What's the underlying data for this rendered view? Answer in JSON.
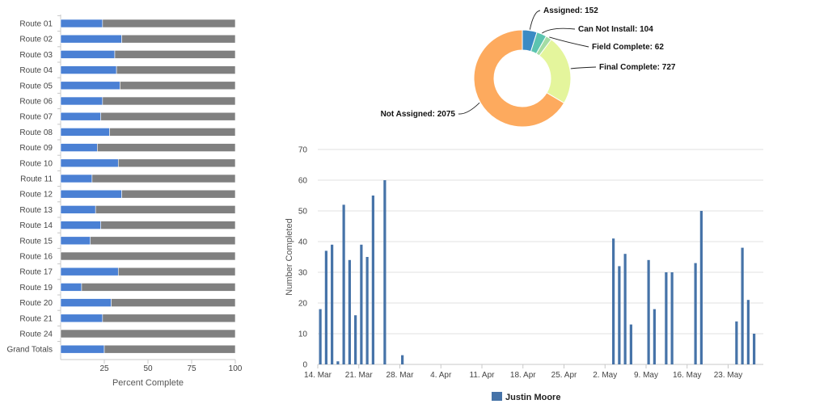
{
  "chart_data": [
    {
      "type": "bar",
      "orientation": "horizontal",
      "stacked": true,
      "categories": [
        "Route 01",
        "Route 02",
        "Route 03",
        "Route 04",
        "Route 05",
        "Route 06",
        "Route 07",
        "Route 08",
        "Route 09",
        "Route 10",
        "Route 11",
        "Route 12",
        "Route 13",
        "Route 14",
        "Route 15",
        "Route 16",
        "Route 17",
        "Route 19",
        "Route 20",
        "Route 21",
        "Route 24",
        "Grand Totals"
      ],
      "series": [
        {
          "values": [
            24,
            35,
            31,
            32,
            34,
            24,
            23,
            28,
            21,
            33,
            18,
            35,
            20,
            23,
            17,
            0,
            33,
            12,
            29,
            24,
            0,
            25
          ],
          "color": "#4a80d4"
        },
        {
          "values": [
            76,
            65,
            69,
            68,
            66,
            76,
            77,
            72,
            79,
            67,
            82,
            65,
            80,
            77,
            83,
            100,
            67,
            88,
            71,
            76,
            100,
            75
          ],
          "color": "#808080"
        }
      ],
      "xlabel": "Percent Complete",
      "xlim": [
        0,
        100
      ],
      "xticks": [
        "25",
        "50",
        "75",
        "100"
      ]
    },
    {
      "type": "pie",
      "donut": true,
      "slices": [
        {
          "label": "Assigned: 152",
          "value": 152,
          "color": "#3a8bc4"
        },
        {
          "label": "Can Not Install: 104",
          "value": 104,
          "color": "#5cc4b0"
        },
        {
          "label": "Field Complete: 62",
          "value": 62,
          "color": "#a4dca4"
        },
        {
          "label": "Final Complete: 727",
          "value": 727,
          "color": "#e4f59c"
        },
        {
          "label": "Not Assigned: 2075",
          "value": 2075,
          "color": "#fdaa5e"
        }
      ]
    },
    {
      "type": "bar",
      "x_start": "2020-03-14",
      "xticks": [
        "14. Mar",
        "21. Mar",
        "28. Mar",
        "4. Apr",
        "11. Apr",
        "18. Apr",
        "25. Apr",
        "2. May",
        "9. May",
        "16. May",
        "23. May"
      ],
      "ylabel": "Number Completed",
      "ylim": [
        0,
        70
      ],
      "yticks": [
        "0",
        "10",
        "20",
        "30",
        "40",
        "50",
        "60",
        "70"
      ],
      "series": [
        {
          "name": "Justin Moore",
          "color": "#4673a8",
          "points": [
            [
              0,
              18
            ],
            [
              1,
              37
            ],
            [
              2,
              39
            ],
            [
              3,
              1
            ],
            [
              4,
              52
            ],
            [
              5,
              34
            ],
            [
              6,
              16
            ],
            [
              7,
              39
            ],
            [
              8,
              35
            ],
            [
              9,
              55
            ],
            [
              11,
              60
            ],
            [
              14,
              3
            ],
            [
              50,
              41
            ],
            [
              51,
              32
            ],
            [
              52,
              36
            ],
            [
              53,
              13
            ],
            [
              56,
              34
            ],
            [
              57,
              18
            ],
            [
              59,
              30
            ],
            [
              60,
              30
            ],
            [
              64,
              33
            ],
            [
              65,
              50
            ],
            [
              71,
              14
            ],
            [
              72,
              38
            ],
            [
              73,
              21
            ],
            [
              74,
              10
            ]
          ]
        }
      ]
    }
  ]
}
